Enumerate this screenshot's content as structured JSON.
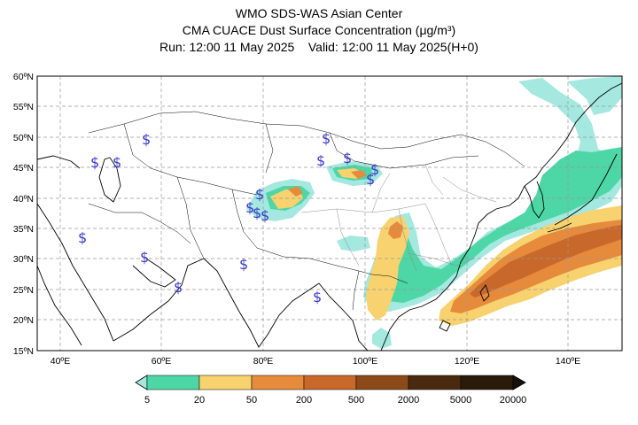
{
  "header": {
    "line1": "WMO SDS-WAS Asian Center",
    "line2": "CMA CUACE Dust Surface Concentration (μg/m³)",
    "line3": "Run: 12:00 11 May 2025    Valid: 12:00 11 May 2025(H+0)"
  },
  "map": {
    "lon_range": [
      35,
      150
    ],
    "lat_range": [
      15,
      60
    ],
    "lon_ticks": [
      "40ºE",
      "60ºE",
      "80ºE",
      "100ºE",
      "120ºE",
      "140ºE"
    ],
    "lat_ticks": [
      "15ºN",
      "20ºN",
      "25ºN",
      "30ºN",
      "35ºN",
      "40ºN",
      "45ºN",
      "50ºN",
      "55ºN",
      "60ºN"
    ],
    "grid": true,
    "symbol": "$"
  },
  "colorbar": {
    "labels": [
      "5",
      "20",
      "50",
      "200",
      "500",
      "2000",
      "5000",
      "20000"
    ],
    "colors": [
      "#a4e8e0",
      "#4dd6a6",
      "#f7d26e",
      "#e68a3c",
      "#c8682a",
      "#8c4a18",
      "#4a2a0e"
    ]
  }
}
